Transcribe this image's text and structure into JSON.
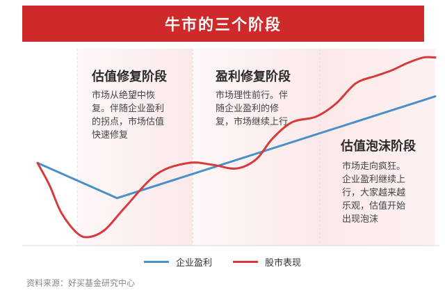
{
  "title": "牛市的三个阶段",
  "phases": [
    {
      "title": "估值修复阶段",
      "desc_lines": [
        "市场从绝望中恢",
        "复。伴随企业盈利",
        "的拐点，市场估值",
        "快速修复"
      ]
    },
    {
      "title": "盈利修复阶段",
      "desc_lines": [
        "市场理性前行。伴",
        "随企业盈利的修",
        "复，市场继续上行"
      ]
    },
    {
      "title": "估值泡沫阶段",
      "desc_lines": [
        "市场走向疯狂。",
        "企业盈利继续上",
        "行，大家越来越",
        "乐观，估值开始",
        "出现泡沫"
      ]
    }
  ],
  "legend": [
    {
      "label": "企业盈利",
      "color": "#4a90c8"
    },
    {
      "label": "股市表现",
      "color": "#d63a3a"
    }
  ],
  "source": "资料来源：好买基金研究中心",
  "colors": {
    "accent": "#cf2a2a",
    "earnings": "#4a90c8",
    "market": "#d63a3a",
    "phase_bg": "#fbe9e9"
  },
  "chart_data": {
    "type": "line",
    "title": "",
    "xlabel": "",
    "ylabel": "",
    "xlim": [
      0,
      100
    ],
    "ylim": [
      0,
      100
    ],
    "grid": false,
    "legend_position": "bottom",
    "series": [
      {
        "name": "企业盈利",
        "x": [
          0,
          20,
          100
        ],
        "y": [
          42,
          23,
          78
        ]
      },
      {
        "name": "股市表现",
        "x": [
          0,
          3,
          6,
          10,
          13,
          17,
          22,
          30,
          38,
          44,
          50,
          55,
          59,
          64,
          70,
          75,
          80,
          85,
          89,
          93,
          97,
          100
        ],
        "y": [
          42,
          30,
          15,
          4,
          2,
          6,
          18,
          36,
          42,
          41,
          39,
          44,
          55,
          64,
          67,
          74,
          85,
          89,
          92,
          96,
          99,
          99
        ]
      }
    ],
    "phases": [
      {
        "label": "估值修复阶段",
        "x_range": [
          10,
          39
        ]
      },
      {
        "label": "盈利修复阶段",
        "x_range": [
          39,
          71
        ]
      },
      {
        "label": "估值泡沫阶段",
        "x_range": [
          71,
          100
        ]
      }
    ]
  }
}
